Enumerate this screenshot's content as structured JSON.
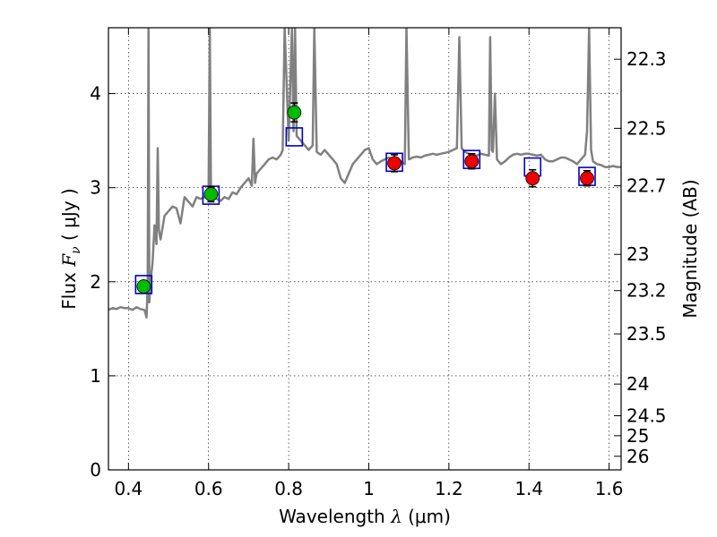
{
  "chart_data": {
    "type": "scatter",
    "title": "",
    "xlabel": {
      "prefix": "Wavelength  ",
      "symbol": "λ",
      "units": " (μm)"
    },
    "ylabel": {
      "prefix": "Flux  ",
      "symbol": "F",
      "subscript": "ν",
      "units": "  ( μJy )"
    },
    "y2label": "Magnitude (AB)",
    "xlim": [
      0.35,
      1.63
    ],
    "ylim": [
      0,
      4.7
    ],
    "grid": true,
    "x_ticks": [
      {
        "value": 0.4,
        "label": "0.4"
      },
      {
        "value": 0.6,
        "label": "0.6"
      },
      {
        "value": 0.8,
        "label": "0.8"
      },
      {
        "value": 1.0,
        "label": "1"
      },
      {
        "value": 1.2,
        "label": "1.2"
      },
      {
        "value": 1.4,
        "label": "1.4"
      },
      {
        "value": 1.6,
        "label": "1.6"
      }
    ],
    "y_ticks": [
      {
        "value": 0,
        "label": "0"
      },
      {
        "value": 1,
        "label": "1"
      },
      {
        "value": 2,
        "label": "2"
      },
      {
        "value": 3,
        "label": "3"
      },
      {
        "value": 4,
        "label": "4"
      }
    ],
    "y2_ticks": [
      {
        "value": 22.3,
        "label": "22.3"
      },
      {
        "value": 22.5,
        "label": "22.5"
      },
      {
        "value": 22.7,
        "label": "22.7"
      },
      {
        "value": 23,
        "label": "23"
      },
      {
        "value": 23.2,
        "label": "23.2"
      },
      {
        "value": 23.5,
        "label": "23.5"
      },
      {
        "value": 24,
        "label": "24"
      },
      {
        "value": 24.5,
        "label": "24.5"
      },
      {
        "value": 25,
        "label": "25"
      },
      {
        "value": 26,
        "label": "26"
      }
    ],
    "colors": {
      "spectrum": "#808080",
      "model_box": "#0000cc",
      "optical": "#00bb00",
      "nir": "#ee0000",
      "errorbar": "#000000"
    },
    "series": [
      {
        "role": "model-spectrum",
        "style": "line",
        "points": [
          [
            0.35,
            1.7
          ],
          [
            0.36,
            1.72
          ],
          [
            0.37,
            1.71
          ],
          [
            0.38,
            1.73
          ],
          [
            0.39,
            1.72
          ],
          [
            0.4,
            1.72
          ],
          [
            0.41,
            1.7
          ],
          [
            0.42,
            1.73
          ],
          [
            0.43,
            1.71
          ],
          [
            0.44,
            1.7
          ],
          [
            0.445,
            1.62
          ],
          [
            0.448,
            1.95
          ],
          [
            0.45,
            4.7
          ],
          [
            0.452,
            1.78
          ],
          [
            0.455,
            2.0
          ],
          [
            0.46,
            2.2
          ],
          [
            0.465,
            2.6
          ],
          [
            0.47,
            2.4
          ],
          [
            0.473,
            3.42
          ],
          [
            0.476,
            2.55
          ],
          [
            0.48,
            2.45
          ],
          [
            0.49,
            2.7
          ],
          [
            0.5,
            2.75
          ],
          [
            0.51,
            2.8
          ],
          [
            0.52,
            2.78
          ],
          [
            0.53,
            2.62
          ],
          [
            0.54,
            2.9
          ],
          [
            0.55,
            2.85
          ],
          [
            0.56,
            2.8
          ],
          [
            0.57,
            2.9
          ],
          [
            0.58,
            2.88
          ],
          [
            0.59,
            2.9
          ],
          [
            0.6,
            2.92
          ],
          [
            0.603,
            4.7
          ],
          [
            0.606,
            2.95
          ],
          [
            0.61,
            2.92
          ],
          [
            0.62,
            2.88
          ],
          [
            0.63,
            2.86
          ],
          [
            0.64,
            2.9
          ],
          [
            0.65,
            2.88
          ],
          [
            0.66,
            2.95
          ],
          [
            0.67,
            2.93
          ],
          [
            0.68,
            3.0
          ],
          [
            0.69,
            3.05
          ],
          [
            0.7,
            3.1
          ],
          [
            0.708,
            3.02
          ],
          [
            0.712,
            3.52
          ],
          [
            0.716,
            3.05
          ],
          [
            0.72,
            3.15
          ],
          [
            0.73,
            3.2
          ],
          [
            0.74,
            3.25
          ],
          [
            0.75,
            3.3
          ],
          [
            0.76,
            3.32
          ],
          [
            0.77,
            3.3
          ],
          [
            0.78,
            3.35
          ],
          [
            0.785,
            3.4
          ],
          [
            0.79,
            4.7
          ],
          [
            0.8,
            3.5
          ],
          [
            0.808,
            4.7
          ],
          [
            0.812,
            3.6
          ],
          [
            0.816,
            4.7
          ],
          [
            0.82,
            3.55
          ],
          [
            0.83,
            3.5
          ],
          [
            0.84,
            3.45
          ],
          [
            0.85,
            3.4
          ],
          [
            0.86,
            3.45
          ],
          [
            0.864,
            4.7
          ],
          [
            0.87,
            3.38
          ],
          [
            0.88,
            3.35
          ],
          [
            0.89,
            3.4
          ],
          [
            0.9,
            3.35
          ],
          [
            0.91,
            3.3
          ],
          [
            0.92,
            3.25
          ],
          [
            0.93,
            3.1
          ],
          [
            0.94,
            3.05
          ],
          [
            0.95,
            3.15
          ],
          [
            0.96,
            3.25
          ],
          [
            0.97,
            3.3
          ],
          [
            0.98,
            3.35
          ],
          [
            0.99,
            3.4
          ],
          [
            1.0,
            3.42
          ],
          [
            1.01,
            3.3
          ],
          [
            1.02,
            3.25
          ],
          [
            1.03,
            3.28
          ],
          [
            1.04,
            3.3
          ],
          [
            1.05,
            3.32
          ],
          [
            1.06,
            3.3
          ],
          [
            1.07,
            3.32
          ],
          [
            1.08,
            3.28
          ],
          [
            1.09,
            3.25
          ],
          [
            1.094,
            4.7
          ],
          [
            1.1,
            3.3
          ],
          [
            1.11,
            3.32
          ],
          [
            1.12,
            3.33
          ],
          [
            1.13,
            3.32
          ],
          [
            1.14,
            3.34
          ],
          [
            1.15,
            3.35
          ],
          [
            1.16,
            3.36
          ],
          [
            1.17,
            3.35
          ],
          [
            1.18,
            3.36
          ],
          [
            1.19,
            3.37
          ],
          [
            1.2,
            3.38
          ],
          [
            1.21,
            3.4
          ],
          [
            1.22,
            3.42
          ],
          [
            1.226,
            4.6
          ],
          [
            1.232,
            3.42
          ],
          [
            1.24,
            3.38
          ],
          [
            1.25,
            3.36
          ],
          [
            1.26,
            3.35
          ],
          [
            1.27,
            3.34
          ],
          [
            1.28,
            3.36
          ],
          [
            1.29,
            3.35
          ],
          [
            1.3,
            3.34
          ],
          [
            1.303,
            4.6
          ],
          [
            1.307,
            3.4
          ],
          [
            1.31,
            3.38
          ],
          [
            1.315,
            4.0
          ],
          [
            1.32,
            3.3
          ],
          [
            1.33,
            3.25
          ],
          [
            1.34,
            3.28
          ],
          [
            1.35,
            3.32
          ],
          [
            1.36,
            3.35
          ],
          [
            1.37,
            3.36
          ],
          [
            1.38,
            3.35
          ],
          [
            1.39,
            3.36
          ],
          [
            1.4,
            3.36
          ],
          [
            1.41,
            3.35
          ],
          [
            1.42,
            3.34
          ],
          [
            1.43,
            3.35
          ],
          [
            1.44,
            3.3
          ],
          [
            1.45,
            3.28
          ],
          [
            1.46,
            3.28
          ],
          [
            1.47,
            3.3
          ],
          [
            1.48,
            3.32
          ],
          [
            1.49,
            3.32
          ],
          [
            1.5,
            3.3
          ],
          [
            1.51,
            3.28
          ],
          [
            1.52,
            3.25
          ],
          [
            1.53,
            3.3
          ],
          [
            1.54,
            3.35
          ],
          [
            1.545,
            3.6
          ],
          [
            1.55,
            4.7
          ],
          [
            1.555,
            3.4
          ],
          [
            1.56,
            3.28
          ],
          [
            1.57,
            3.25
          ],
          [
            1.58,
            3.24
          ],
          [
            1.59,
            3.22
          ],
          [
            1.6,
            3.22
          ],
          [
            1.61,
            3.23
          ],
          [
            1.62,
            3.22
          ],
          [
            1.63,
            3.22
          ]
        ]
      },
      {
        "role": "model-photometry",
        "style": "open-square",
        "points": [
          [
            0.438,
            1.97
          ],
          [
            0.606,
            2.92
          ],
          [
            0.814,
            3.54
          ],
          [
            1.064,
            3.27
          ],
          [
            1.257,
            3.3
          ],
          [
            1.409,
            3.22
          ],
          [
            1.545,
            3.12
          ]
        ]
      },
      {
        "role": "optical-photometry",
        "style": "filled-circle",
        "points": [
          {
            "x": 0.438,
            "y": 1.95,
            "err": 0.05
          },
          {
            "x": 0.606,
            "y": 2.93,
            "err": 0.08
          },
          {
            "x": 0.814,
            "y": 3.8,
            "err": 0.1
          }
        ]
      },
      {
        "role": "nir-photometry",
        "style": "filled-circle",
        "points": [
          {
            "x": 1.064,
            "y": 3.26,
            "err": 0.09
          },
          {
            "x": 1.257,
            "y": 3.28,
            "err": 0.08
          },
          {
            "x": 1.409,
            "y": 3.1,
            "err": 0.09
          },
          {
            "x": 1.545,
            "y": 3.1,
            "err": 0.08
          }
        ]
      }
    ]
  }
}
